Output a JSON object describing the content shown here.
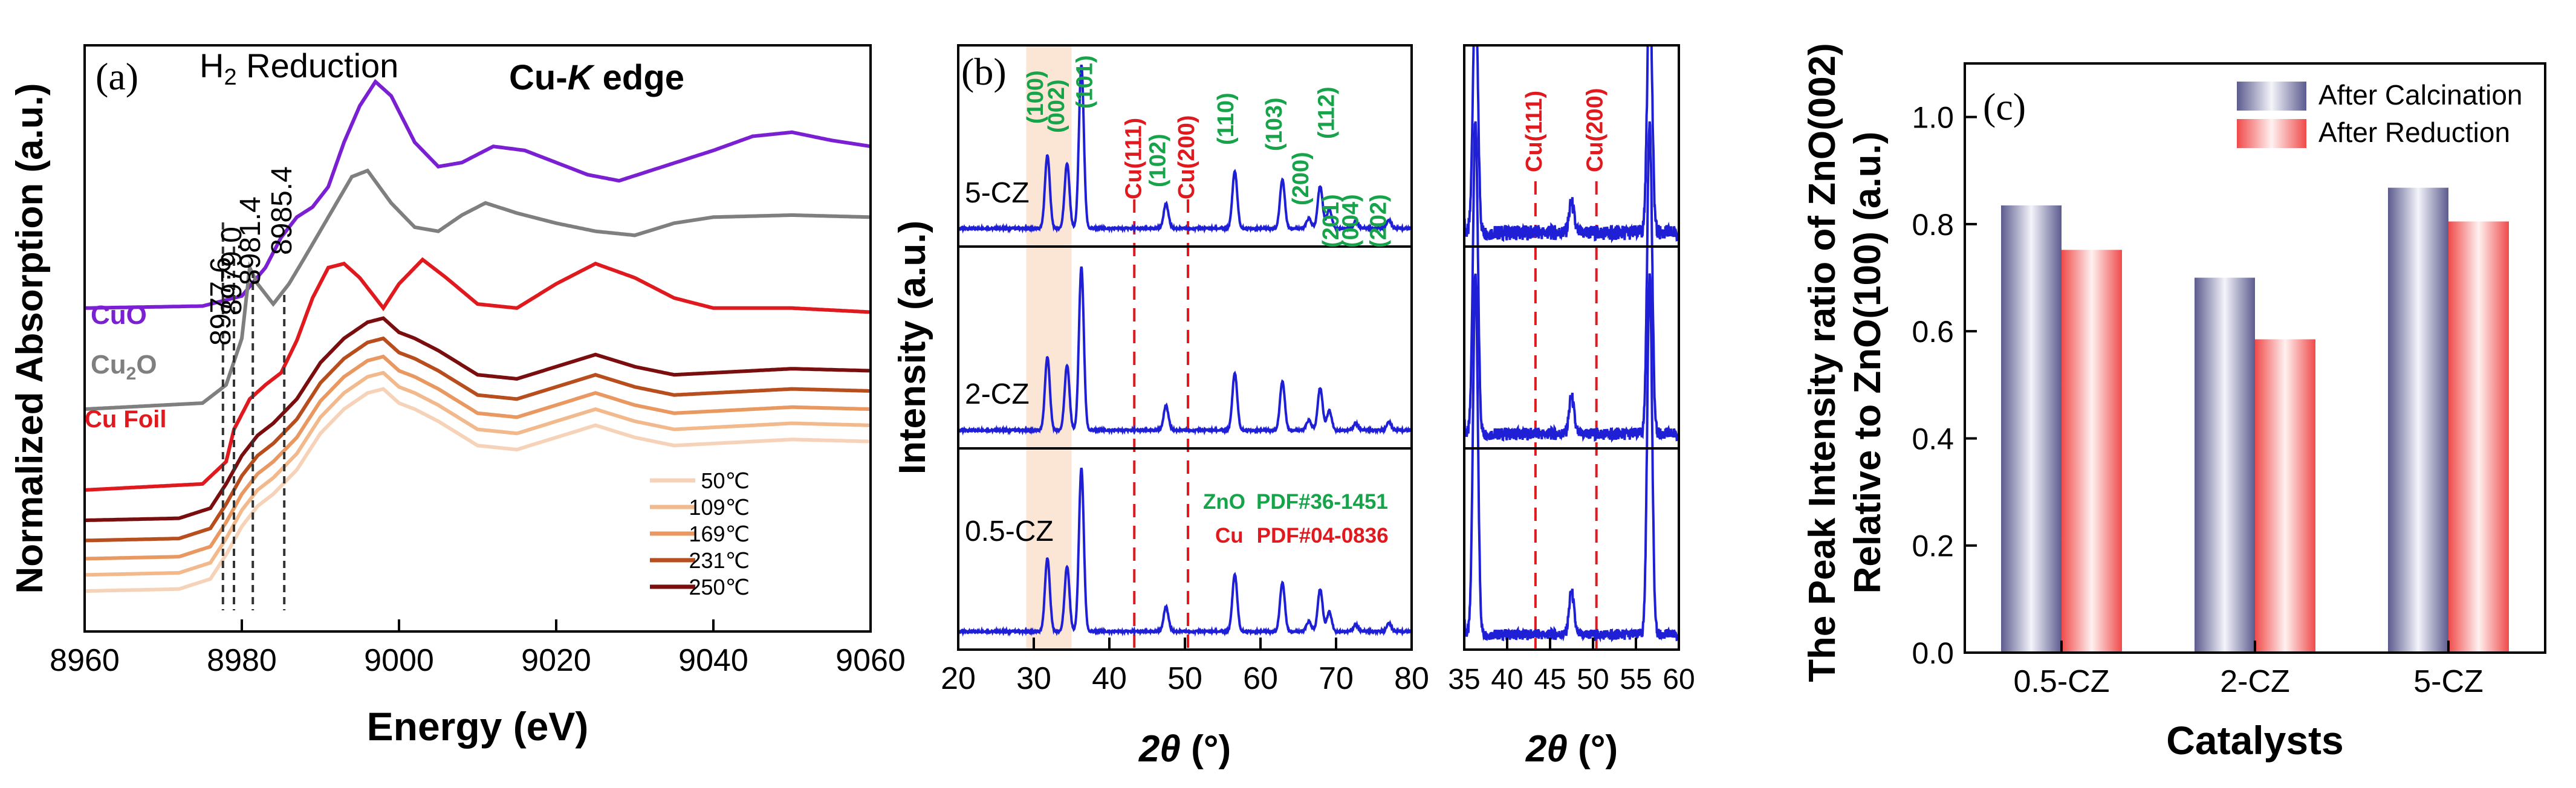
{
  "chart_data": [
    {
      "panel": "a",
      "type": "line",
      "panel_label": "(a)",
      "title": "Cu-K edge",
      "title_prefix": "Cu-",
      "title_italic": "K",
      "title_suffix": " edge",
      "annotation_prefix": "H",
      "annotation_sub": "2",
      "annotation_suffix": " Reduction",
      "xlabel": "Energy (eV)",
      "ylabel": "Normalized Absorption (a.u.)",
      "xlim": [
        8960,
        9060
      ],
      "x_ticks": [
        8960,
        8980,
        9000,
        9020,
        9040,
        9060
      ],
      "x_tick_labels": [
        "8960",
        "8980",
        "9000",
        "9020",
        "9040",
        "9060"
      ],
      "edge_markers": [
        {
          "energy": 8977.6,
          "label": "8977.6"
        },
        {
          "energy": 8979.0,
          "label": "8979.0"
        },
        {
          "energy": 8981.4,
          "label": "8981.4"
        },
        {
          "energy": 8985.4,
          "label": "8985.4"
        }
      ],
      "references": [
        {
          "name": "CuO",
          "label": "CuO",
          "color": "#7a1fd1",
          "offset": 1.45,
          "points": [
            [
              8960,
              0
            ],
            [
              8975,
              0.01
            ],
            [
              8980,
              0.06
            ],
            [
              8983,
              0.2
            ],
            [
              8985,
              0.35
            ],
            [
              8987,
              0.45
            ],
            [
              8989,
              0.5
            ],
            [
              8991,
              0.6
            ],
            [
              8993,
              0.82
            ],
            [
              8995,
              1.0
            ],
            [
              8997,
              1.12
            ],
            [
              8999,
              1.05
            ],
            [
              9002,
              0.82
            ],
            [
              9005,
              0.7
            ],
            [
              9008,
              0.72
            ],
            [
              9012,
              0.8
            ],
            [
              9016,
              0.78
            ],
            [
              9020,
              0.72
            ],
            [
              9024,
              0.66
            ],
            [
              9028,
              0.63
            ],
            [
              9032,
              0.68
            ],
            [
              9040,
              0.78
            ],
            [
              9045,
              0.85
            ],
            [
              9050,
              0.87
            ],
            [
              9055,
              0.83
            ],
            [
              9060,
              0.8
            ]
          ]
        },
        {
          "name": "Cu2O",
          "label_main": "Cu",
          "label_sub": "2",
          "label_suffix": "O",
          "color": "#7f7f7f",
          "offset": 0.95,
          "points": [
            [
              8960,
              0
            ],
            [
              8975,
              0.03
            ],
            [
              8978,
              0.12
            ],
            [
              8980,
              0.35
            ],
            [
              8981,
              0.7
            ],
            [
              8982,
              0.62
            ],
            [
              8984,
              0.52
            ],
            [
              8986,
              0.62
            ],
            [
              8988,
              0.75
            ],
            [
              8991,
              0.95
            ],
            [
              8994,
              1.15
            ],
            [
              8996,
              1.18
            ],
            [
              8999,
              1.02
            ],
            [
              9002,
              0.9
            ],
            [
              9005,
              0.88
            ],
            [
              9008,
              0.96
            ],
            [
              9011,
              1.02
            ],
            [
              9015,
              0.97
            ],
            [
              9020,
              0.92
            ],
            [
              9025,
              0.88
            ],
            [
              9030,
              0.86
            ],
            [
              9035,
              0.92
            ],
            [
              9040,
              0.95
            ],
            [
              9050,
              0.96
            ],
            [
              9060,
              0.95
            ]
          ]
        },
        {
          "name": "Cu Foil",
          "label": "Cu Foil",
          "color": "#e0191e",
          "offset": 0.55,
          "points": [
            [
              8960,
              0
            ],
            [
              8975,
              0.03
            ],
            [
              8978,
              0.14
            ],
            [
              8979,
              0.3
            ],
            [
              8981,
              0.45
            ],
            [
              8983,
              0.52
            ],
            [
              8985,
              0.58
            ],
            [
              8987,
              0.74
            ],
            [
              8989,
              0.95
            ],
            [
              8991,
              1.1
            ],
            [
              8993,
              1.12
            ],
            [
              8995,
              1.05
            ],
            [
              8998,
              0.9
            ],
            [
              9000,
              1.02
            ],
            [
              9003,
              1.14
            ],
            [
              9006,
              1.05
            ],
            [
              9010,
              0.92
            ],
            [
              9015,
              0.9
            ],
            [
              9020,
              1.02
            ],
            [
              9025,
              1.12
            ],
            [
              9030,
              1.05
            ],
            [
              9035,
              0.95
            ],
            [
              9040,
              0.9
            ],
            [
              9050,
              0.9
            ],
            [
              9060,
              0.88
            ]
          ]
        }
      ],
      "legend": [
        {
          "label": "50℃",
          "color": "#f6d3b8"
        },
        {
          "label": "109℃",
          "color": "#f2b98c"
        },
        {
          "label": "169℃",
          "color": "#e89860"
        },
        {
          "label": "231℃",
          "color": "#b84e1e"
        },
        {
          "label": "250℃",
          "color": "#7a0e0e"
        }
      ]
    },
    {
      "panel": "b",
      "type": "line",
      "panel_label": "(b)",
      "xlabel_italic": "2θ",
      "xlabel_suffix": " (°)",
      "ylabel": "Intensity (a.u.)",
      "main_xlim": [
        20,
        80
      ],
      "main_x_ticks": [
        20,
        30,
        40,
        50,
        60,
        70,
        80
      ],
      "main_x_tick_labels": [
        "20",
        "30",
        "40",
        "50",
        "60",
        "70",
        "80"
      ],
      "zoom_xlim": [
        35,
        60
      ],
      "zoom_x_ticks": [
        35,
        40,
        45,
        50,
        55,
        60
      ],
      "zoom_x_tick_labels": [
        "35",
        "40",
        "45",
        "50",
        "55",
        "60"
      ],
      "samples": [
        "5-CZ",
        "2-CZ",
        "0.5-CZ"
      ],
      "zno_peaks": [
        31.8,
        34.4,
        36.3,
        47.5,
        56.6,
        62.9,
        66.4,
        67.9,
        69.1,
        72.6,
        77.0
      ],
      "zno_labels": [
        "(100)",
        "(002)",
        "(101)",
        "(102)",
        "(110)",
        "(103)",
        "(200)",
        "(112)",
        "(201)",
        "(004)",
        "(202)"
      ],
      "cu_peaks": [
        43.3,
        50.4
      ],
      "cu_labels": [
        "Cu(111)",
        "Cu(200)"
      ],
      "highlight_range": [
        29,
        35
      ],
      "reference_text": [
        {
          "label": "ZnO",
          "pdf": "PDF#36-1451",
          "color": "#16a34a"
        },
        {
          "label": "Cu",
          "pdf": "PDF#04-0836",
          "color": "#e0191e"
        }
      ],
      "series_color": "#1f1fd6",
      "ref_line_color": "#e0191e"
    },
    {
      "panel": "c",
      "type": "bar",
      "panel_label": "(c)",
      "categories": [
        "0.5-CZ",
        "2-CZ",
        "5-CZ"
      ],
      "series": [
        {
          "name": "After Calcination",
          "values": [
            0.835,
            0.7,
            0.868
          ],
          "color": "#6e6e9e"
        },
        {
          "name": "After Reduction",
          "values": [
            0.752,
            0.585,
            0.805
          ],
          "color": "#f26b6b"
        }
      ],
      "xlabel": "Catalysts",
      "ylabel_line1": "The Peak Intensity ratio of ZnO(002)",
      "ylabel_line2": "Relative to ZnO(100)  (a.u.)",
      "ylim": [
        0,
        1.1
      ],
      "y_ticks": [
        0,
        0.2,
        0.4,
        0.6,
        0.8,
        1.0
      ],
      "y_tick_labels": [
        "0.0",
        "0.2",
        "0.4",
        "0.6",
        "0.8",
        "1.0"
      ]
    }
  ]
}
